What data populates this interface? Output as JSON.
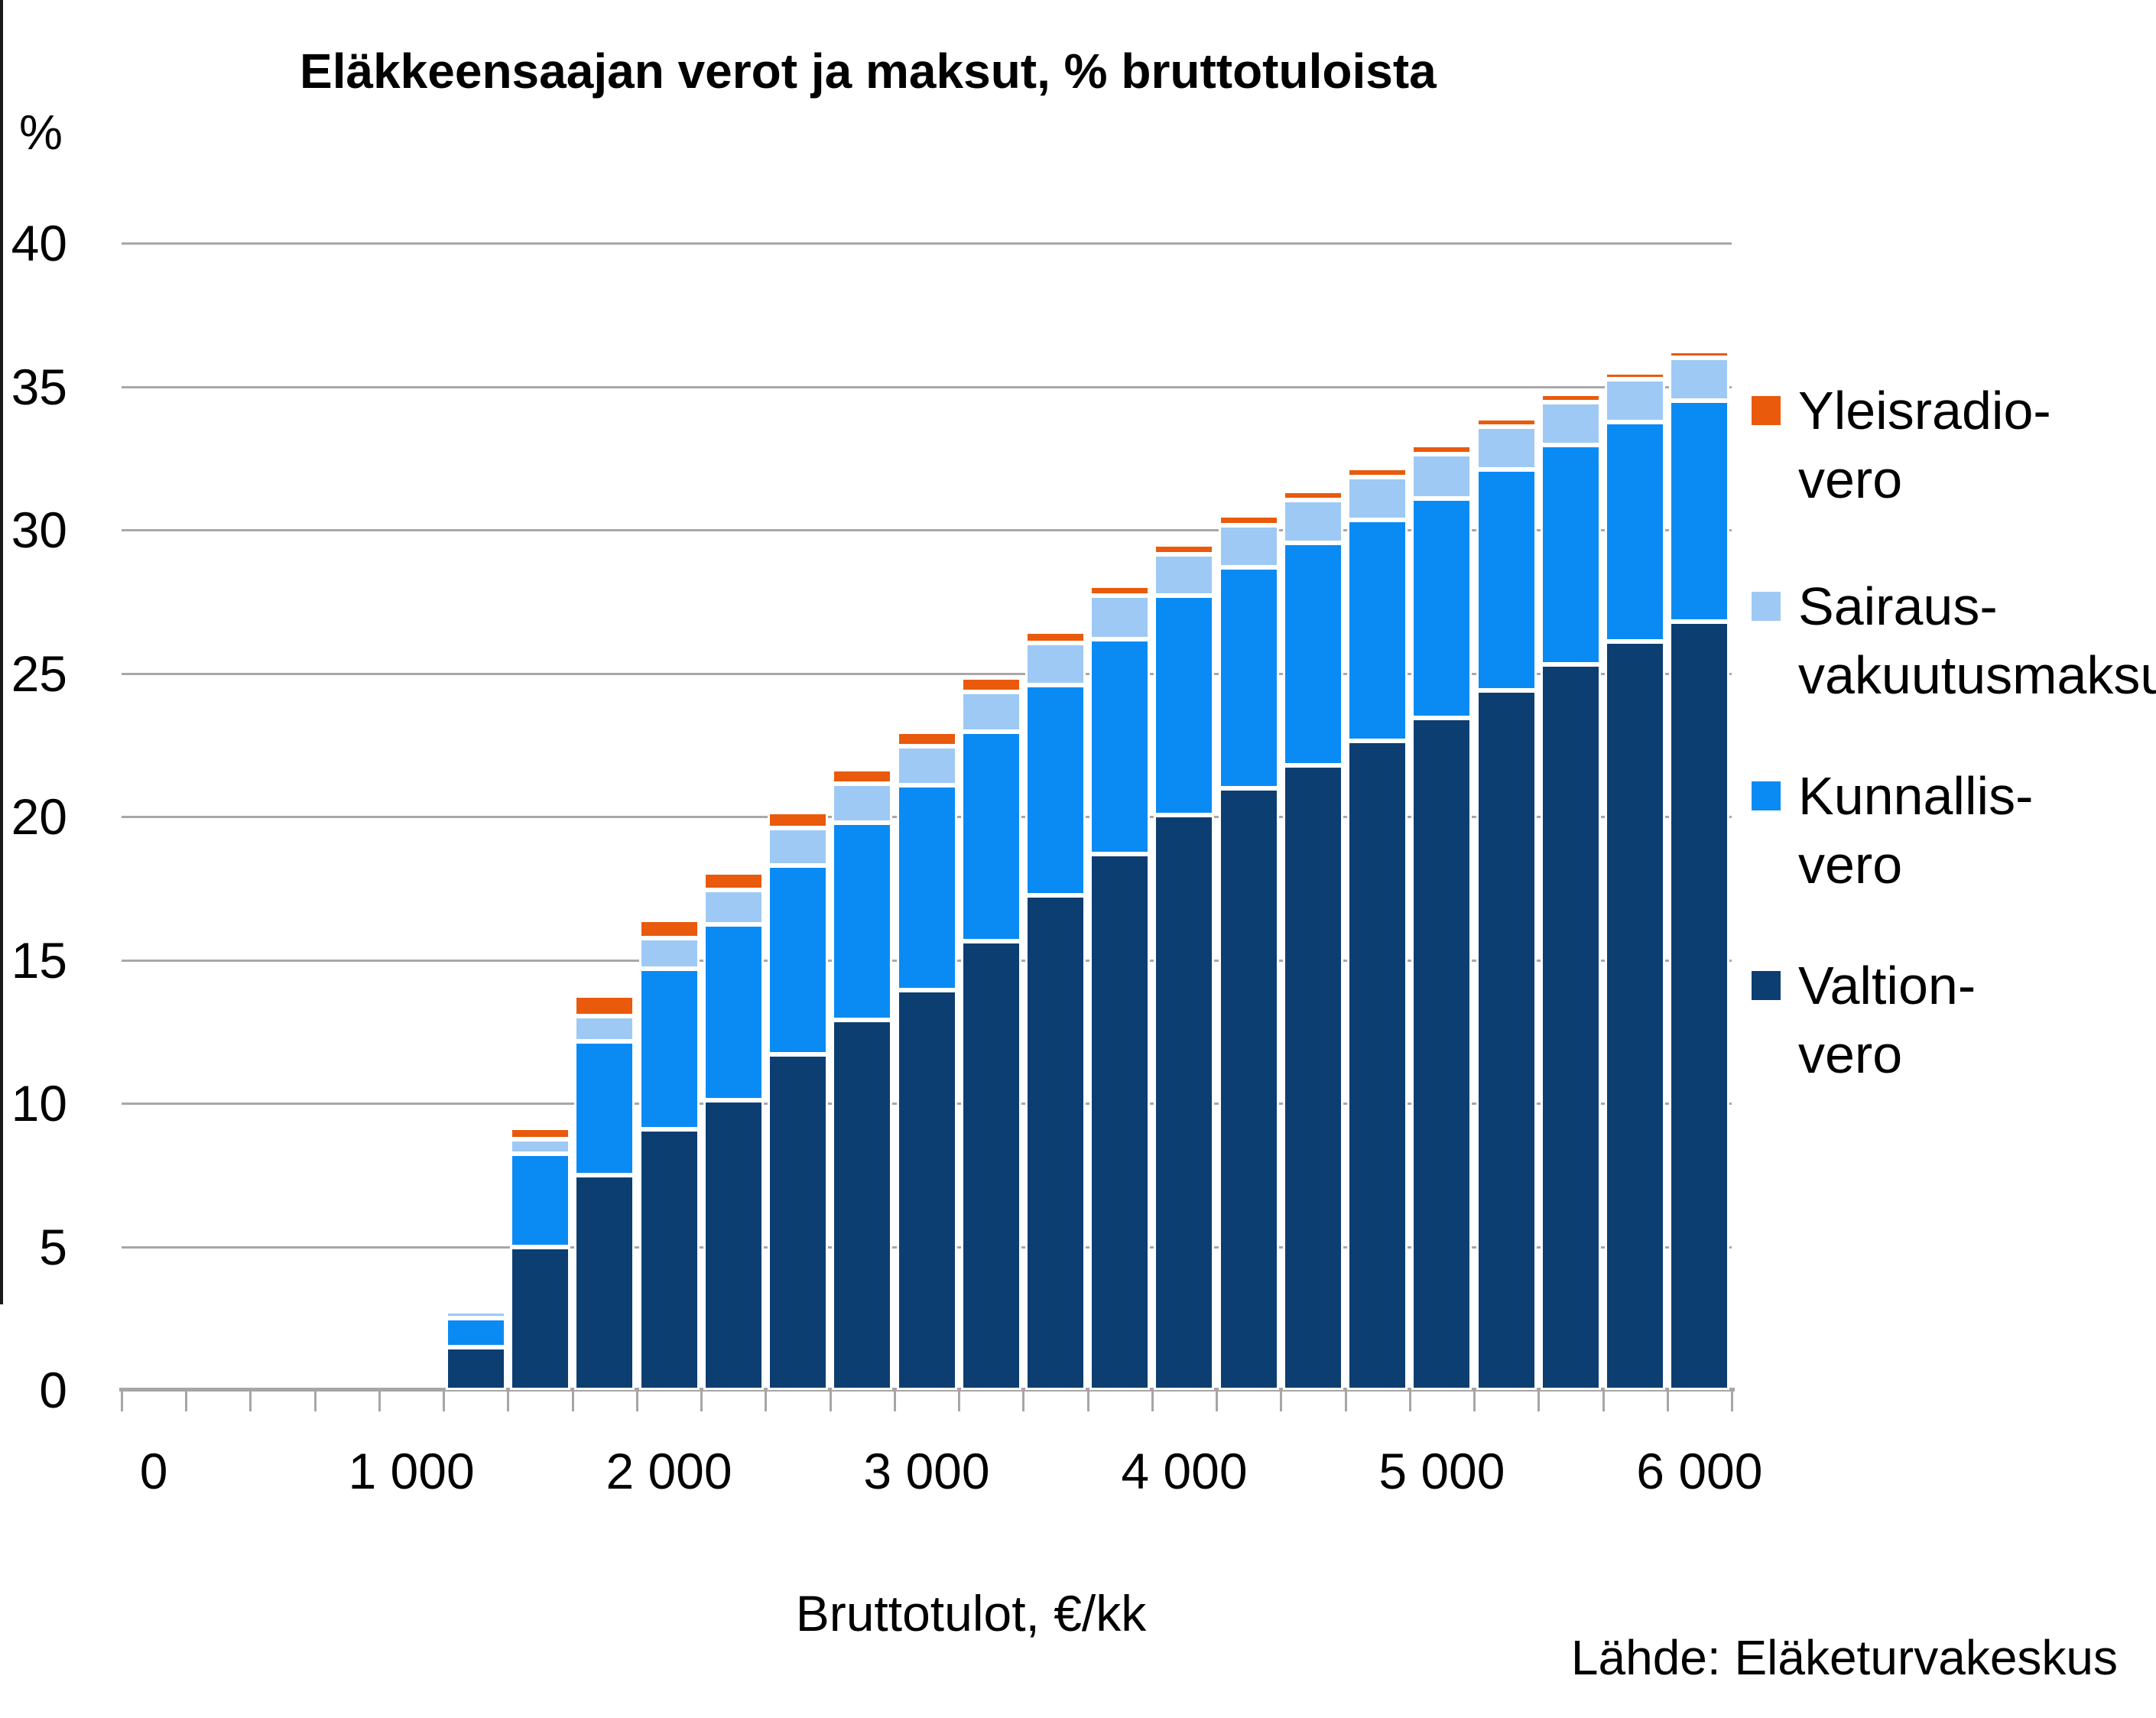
{
  "title": "Eläkkeensaajan verot ja maksut, % bruttotuloista",
  "source": "Lähde: Eläketurvakeskus",
  "y_axis": {
    "unit_label": "%",
    "tick_values": [
      0,
      5,
      10,
      15,
      20,
      25,
      30,
      35,
      40
    ],
    "tick_labels": [
      "0",
      "5",
      "10",
      "15",
      "20",
      "25",
      "30",
      "35",
      "40"
    ]
  },
  "x_axis": {
    "label": "Bruttotulot, €/kk",
    "tick_values": [
      0,
      1000,
      2000,
      3000,
      4000,
      5000,
      6000
    ],
    "tick_labels": [
      "0",
      "1 000",
      "2 000",
      "3 000",
      "4 000",
      "5 000",
      "6 000"
    ]
  },
  "legend": [
    {
      "line1": "Yleisradio-",
      "line2": "vero",
      "color": "#e95a0c"
    },
    {
      "line1": "Sairaus-",
      "line2": "vakuutusmaksu",
      "color": "#9ec9f4"
    },
    {
      "line1": "Kunnallis-",
      "line2": "vero",
      "color": "#0a8bf4"
    },
    {
      "line1": "Valtion-",
      "line2": "vero",
      "color": "#0d3e72"
    }
  ],
  "chart_data": {
    "type": "bar",
    "stacked": true,
    "title": "Eläkkeensaajan verot ja maksut, % bruttotuloista",
    "xlabel": "Bruttotulot, €/kk",
    "ylabel": "%",
    "ylim": [
      0,
      40
    ],
    "x_category_step": 250,
    "x_axis_range": [
      0,
      6000
    ],
    "grid": true,
    "legend_position": "right",
    "categories": [
      1250,
      1500,
      1750,
      2000,
      2250,
      2500,
      2750,
      3000,
      3250,
      3500,
      3750,
      4000,
      4250,
      4500,
      4750,
      5000,
      5250,
      5500,
      5750,
      6000
    ],
    "series": [
      {
        "name": "Valtion-vero",
        "color": "#0d3e72",
        "values": [
          1.5,
          5.0,
          7.5,
          9.1,
          10.1,
          11.7,
          12.9,
          13.95,
          15.65,
          17.25,
          18.7,
          20.05,
          21.0,
          21.8,
          22.65,
          23.45,
          24.4,
          25.3,
          26.1,
          26.8
        ]
      },
      {
        "name": "Kunnallis-vero",
        "color": "#0a8bf4",
        "values": [
          1.0,
          3.25,
          4.65,
          5.6,
          6.15,
          6.6,
          6.9,
          7.15,
          7.3,
          7.35,
          7.5,
          7.65,
          7.7,
          7.75,
          7.7,
          7.65,
          7.7,
          7.65,
          7.65,
          7.7
        ]
      },
      {
        "name": "Sairaus-vakuutusmaksu",
        "color": "#9ec9f4",
        "values": [
          0.25,
          0.5,
          0.9,
          1.05,
          1.2,
          1.3,
          1.35,
          1.35,
          1.4,
          1.45,
          1.5,
          1.45,
          1.45,
          1.5,
          1.5,
          1.55,
          1.5,
          1.5,
          1.5,
          1.5
        ]
      },
      {
        "name": "Yleisradio-vero",
        "color": "#e95a0c",
        "values": [
          0.0,
          0.4,
          0.7,
          0.65,
          0.6,
          0.55,
          0.5,
          0.5,
          0.5,
          0.4,
          0.35,
          0.35,
          0.35,
          0.3,
          0.3,
          0.3,
          0.3,
          0.3,
          0.25,
          0.25
        ]
      }
    ],
    "totals": [
      2.75,
      9.15,
      13.75,
      16.4,
      18.05,
      20.15,
      21.65,
      22.95,
      24.85,
      26.45,
      28.05,
      29.5,
      30.5,
      31.35,
      32.15,
      32.95,
      33.9,
      34.75,
      35.5,
      36.25
    ]
  }
}
